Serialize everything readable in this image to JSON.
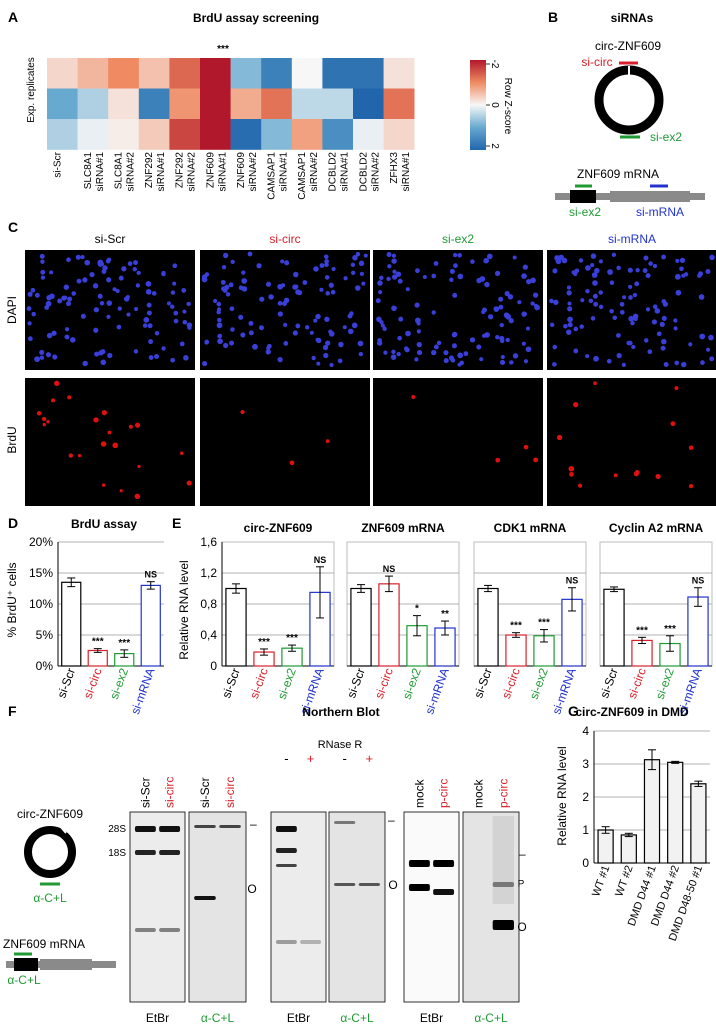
{
  "panels": {
    "A": {
      "letter": "A",
      "title": "BrdU assay screening",
      "significance": "***",
      "ylabel": "Exp. replicates",
      "legend": {
        "title": "Row Z-score",
        "ticks": [
          "-2",
          "0",
          "2"
        ]
      },
      "columns": [
        [
          "si-Scr",
          ""
        ],
        [
          "SLC8A1",
          "siRNA#1"
        ],
        [
          "SLC8A1",
          "siRNA#2"
        ],
        [
          "ZNF292",
          "siRNA#1"
        ],
        [
          "ZNF292",
          "siRNA#2"
        ],
        [
          "ZNF609",
          "siRNA#1"
        ],
        [
          "ZNF609",
          "siRNA#2"
        ],
        [
          "CAMSAP1",
          "siRNA#1"
        ],
        [
          "CAMSAP1",
          "siRNA#2"
        ],
        [
          "DCBLD2",
          "siRNA#1"
        ],
        [
          "DCBLD2",
          "siRNA#2"
        ],
        [
          "ZFHX3",
          "siRNA#1"
        ]
      ],
      "zscores": [
        [
          -0.3,
          -0.6,
          -1.0,
          -0.5,
          -1.3,
          -2.2,
          0.8,
          1.6,
          0.0,
          1.8,
          1.8,
          -0.2
        ],
        [
          1.0,
          0.5,
          -0.2,
          1.6,
          -0.9,
          -2.2,
          -0.7,
          -1.2,
          0.4,
          0.4,
          2.2,
          -1.2
        ],
        [
          0.5,
          0.1,
          -0.1,
          -0.4,
          -1.6,
          -2.2,
          1.9,
          0.8,
          -0.8,
          1.4,
          0.1,
          -0.3
        ]
      ]
    },
    "B": {
      "letter": "B",
      "title": "siRNAs",
      "circ_label": "circ-ZNF609",
      "si_circ": "si-circ",
      "si_ex2": "si-ex2",
      "mrna_label": "ZNF609 mRNA",
      "si_ex2_b": "si-ex2",
      "si_mrna": "si-mRNA"
    },
    "C": {
      "letter": "C",
      "conditions": [
        "si-Scr",
        "si-circ",
        "si-ex2",
        "si-mRNA"
      ],
      "rows": [
        "DAPI",
        "BrdU"
      ]
    },
    "D": {
      "letter": "D",
      "title": "BrdU assay",
      "ylabel": "% BrdU⁺ cells",
      "yticks": [
        "0%",
        "5%",
        "10%",
        "15%",
        "20%"
      ]
    },
    "E": {
      "letter": "E",
      "ylabel": "Relative RNA level",
      "yticks": [
        "0",
        "0,4",
        "0,8",
        "1,2",
        "1,6"
      ]
    },
    "F": {
      "letter": "F",
      "title": "Northern Blot",
      "circ_label": "circ-ZNF609",
      "probe_label": "α-C+L",
      "mrna_label": "ZNF609 mRNA",
      "probe_label_b": "α-C+L",
      "rnase_label": "RNase R",
      "band_28s": "28S",
      "band_18s": "18S",
      "circle_mark": "O",
      "p_mark": "P",
      "dash_mark": "–",
      "gels": [
        {
          "lanes": [
            "si-Scr",
            "si-circ"
          ],
          "lane_colors": [
            "#000000",
            "#d9202a"
          ],
          "stain": "EtBr",
          "stain_color": "#000000"
        },
        {
          "lanes": [
            "si-Scr",
            "si-circ"
          ],
          "lane_colors": [
            "#000000",
            "#d9202a"
          ],
          "stain": "α-C+L",
          "stain_color": "#1f9a35"
        },
        {
          "lanes": [
            "-",
            "+"
          ],
          "lane_colors": [
            "#000000",
            "#d9202a"
          ],
          "stain": "EtBr",
          "stain_color": "#000000"
        },
        {
          "lanes": [
            "-",
            "+"
          ],
          "lane_colors": [
            "#000000",
            "#d9202a"
          ],
          "stain": "α-C+L",
          "stain_color": "#1f9a35"
        },
        {
          "lanes": [
            "mock",
            "p-circ"
          ],
          "lane_colors": [
            "#000000",
            "#d9202a"
          ],
          "stain": "EtBr",
          "stain_color": "#000000"
        },
        {
          "lanes": [
            "mock",
            "p-circ"
          ],
          "lane_colors": [
            "#000000",
            "#d9202a"
          ],
          "stain": "α-C+L",
          "stain_color": "#1f9a35"
        }
      ]
    },
    "G": {
      "letter": "G",
      "title": "circ-ZNF609 in DMD",
      "ylabel": "Relative RNA level",
      "yticks": [
        "0",
        "1",
        "2",
        "3",
        "4"
      ]
    }
  },
  "colors": {
    "scr": "#000000",
    "circ": "#d9202a",
    "ex2": "#1f9a35",
    "mrna": "#2233cc",
    "heat_high": "#b2182b",
    "heat_low": "#2166ac",
    "nucleus": "#3a3fd8",
    "brdu": "#e01010"
  },
  "chart_data": [
    {
      "type": "heatmap",
      "title": "BrdU assay screening",
      "x": [
        "si-Scr",
        "SLC8A1 siRNA#1",
        "SLC8A1 siRNA#2",
        "ZNF292 siRNA#1",
        "ZNF292 siRNA#2",
        "ZNF609 siRNA#1",
        "ZNF609 siRNA#2",
        "CAMSAP1 siRNA#1",
        "CAMSAP1 siRNA#2",
        "DCBLD2 siRNA#1",
        "DCBLD2 siRNA#2",
        "ZFHX3 siRNA#1"
      ],
      "ylabel": "Exp. replicates",
      "legend": "Row Z-score",
      "zlim": [
        -2,
        2
      ]
    },
    {
      "type": "bar",
      "title": "BrdU assay",
      "categories": [
        "si-Scr",
        "si-circ",
        "si-ex2",
        "si-mRNA"
      ],
      "values": [
        13.5,
        2.5,
        2.0,
        13.0
      ],
      "errors": [
        0.7,
        0.3,
        0.6,
        0.6
      ],
      "stars": [
        "",
        "***",
        "***",
        "NS"
      ],
      "ylabel": "% BrdU⁺ cells",
      "ylim": [
        0,
        20
      ]
    },
    {
      "type": "bar",
      "title": "circ-ZNF609",
      "categories": [
        "si-Scr",
        "si-circ",
        "si-ex2",
        "si-mRNA"
      ],
      "values": [
        1.0,
        0.18,
        0.23,
        0.95
      ],
      "errors": [
        0.06,
        0.04,
        0.04,
        0.33
      ],
      "stars": [
        "",
        "***",
        "***",
        "NS"
      ],
      "ylabel": "Relative RNA level",
      "ylim": [
        0,
        1.6
      ]
    },
    {
      "type": "bar",
      "title": "ZNF609 mRNA",
      "categories": [
        "si-Scr",
        "si-circ",
        "si-ex2",
        "si-mRNA"
      ],
      "values": [
        1.0,
        1.06,
        0.52,
        0.49
      ],
      "errors": [
        0.05,
        0.1,
        0.13,
        0.09
      ],
      "stars": [
        "",
        "NS",
        "*",
        "**"
      ],
      "ylabel": "Relative RNA level",
      "ylim": [
        0,
        1.6
      ]
    },
    {
      "type": "bar",
      "title": "CDK1 mRNA",
      "categories": [
        "si-Scr",
        "si-circ",
        "si-ex2",
        "si-mRNA"
      ],
      "values": [
        1.0,
        0.4,
        0.39,
        0.86
      ],
      "errors": [
        0.04,
        0.03,
        0.08,
        0.15
      ],
      "stars": [
        "",
        "***",
        "***",
        "NS"
      ],
      "ylabel": "Relative RNA level",
      "ylim": [
        0,
        1.6
      ]
    },
    {
      "type": "bar",
      "title": "Cyclin A2 mRNA",
      "categories": [
        "si-Scr",
        "si-circ",
        "si-ex2",
        "si-mRNA"
      ],
      "values": [
        0.99,
        0.33,
        0.29,
        0.89
      ],
      "errors": [
        0.03,
        0.04,
        0.1,
        0.12
      ],
      "stars": [
        "",
        "***",
        "***",
        "NS"
      ],
      "ylabel": "Relative RNA level",
      "ylim": [
        0,
        1.6
      ]
    },
    {
      "type": "bar",
      "title": "circ-ZNF609 in DMD",
      "categories": [
        "WT #1",
        "WT #2",
        "DMD D44 #1",
        "DMD D44 #2",
        "DMD D48-50 #1"
      ],
      "values": [
        1.0,
        0.85,
        3.13,
        3.05,
        2.4
      ],
      "errors": [
        0.1,
        0.05,
        0.3,
        0.03,
        0.08
      ],
      "ylabel": "Relative RNA level",
      "ylim": [
        0,
        4
      ]
    }
  ]
}
